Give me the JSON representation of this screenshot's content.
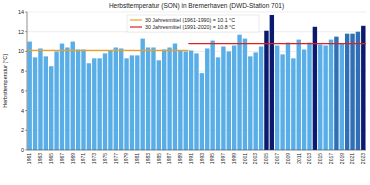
{
  "chart_data": {
    "type": "bar",
    "title": "Herbsttemperatur (SON) in Bremerhaven (DWD-Station 701)",
    "y_label": "Herbsttemperatur [°C]",
    "categories": [
      "1961",
      null,
      "1963",
      null,
      "1965",
      null,
      "1967",
      null,
      "1969",
      null,
      "1971",
      null,
      "1973",
      null,
      "1975",
      null,
      "1977",
      null,
      "1979",
      null,
      "1981",
      null,
      "1983",
      null,
      "1985",
      null,
      "1987",
      null,
      "1989",
      null,
      "1991",
      null,
      "1993",
      null,
      "1995",
      null,
      "1997",
      null,
      "1999",
      null,
      "2001",
      null,
      "2003",
      null,
      "2005",
      null,
      "2007",
      null,
      "2009",
      null,
      "2011",
      null,
      "2013",
      null,
      "2015",
      null,
      "2017",
      null,
      "2019",
      null,
      "2021",
      null,
      "2023"
    ],
    "values": [
      11.0,
      9.4,
      10.3,
      9.5,
      8.5,
      10.0,
      10.8,
      10.4,
      11.0,
      10.2,
      10.2,
      8.8,
      9.3,
      9.3,
      9.8,
      10.1,
      10.4,
      10.3,
      9.3,
      9.6,
      9.6,
      11.3,
      10.4,
      10.4,
      9.1,
      10.2,
      10.4,
      10.8,
      10.1,
      10.0,
      10.1,
      9.8,
      7.8,
      10.3,
      11.1,
      9.4,
      10.5,
      10.0,
      10.6,
      11.7,
      11.3,
      9.5,
      9.9,
      10.5,
      12.1,
      13.7,
      10.6,
      9.7,
      10.9,
      9.3,
      11.2,
      10.2,
      10.9,
      12.5,
      10.7,
      10.6,
      11.2,
      11.5,
      10.8,
      11.8,
      11.8,
      12.0,
      12.6
    ],
    "colors": [
      "#5aaee8",
      "#5aaee8",
      "#5aaee8",
      "#5aaee8",
      "#5aaee8",
      "#5aaee8",
      "#5aaee8",
      "#5aaee8",
      "#5aaee8",
      "#5aaee8",
      "#5aaee8",
      "#5aaee8",
      "#5aaee8",
      "#5aaee8",
      "#5aaee8",
      "#5aaee8",
      "#5aaee8",
      "#5aaee8",
      "#5aaee8",
      "#5aaee8",
      "#5aaee8",
      "#5aaee8",
      "#5aaee8",
      "#5aaee8",
      "#5aaee8",
      "#5aaee8",
      "#5aaee8",
      "#5aaee8",
      "#5aaee8",
      "#5aaee8",
      "#5aaee8",
      "#5aaee8",
      "#5aaee8",
      "#5aaee8",
      "#5aaee8",
      "#5aaee8",
      "#5aaee8",
      "#5aaee8",
      "#5aaee8",
      "#5aaee8",
      "#5aaee8",
      "#5aaee8",
      "#5aaee8",
      "#5aaee8",
      "#0b1a6e",
      "#0b1a6e",
      "#5aaee8",
      "#5aaee8",
      "#5aaee8",
      "#5aaee8",
      "#5aaee8",
      "#5aaee8",
      "#5aaee8",
      "#0b1a6e",
      "#5aaee8",
      "#5aaee8",
      "#5aaee8",
      "#2f6fb5",
      "#5aaee8",
      "#2f6fb5",
      "#2f6fb5",
      "#2f6fb5",
      "#0b1a6e"
    ],
    "reference_lines": [
      {
        "name": "30 Jahresmittel (1961-1990) = 10.1 °C",
        "color": "#f0a020",
        "value": 10.1,
        "x_range": [
          1961,
          1990
        ]
      },
      {
        "name": "30 Jahresmittel (1991-2020) = 10.8 °C",
        "color": "#e02020",
        "value": 10.8,
        "x_range": [
          1991,
          2023
        ]
      }
    ],
    "ylim": [
      0,
      14
    ],
    "yticks": [
      0,
      2,
      4,
      6,
      8,
      10,
      12,
      14
    ],
    "grid": true,
    "legend": "top"
  }
}
